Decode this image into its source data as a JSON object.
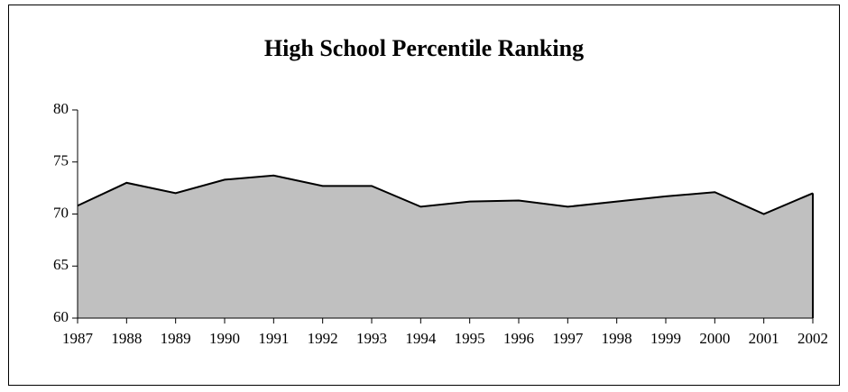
{
  "chart_data": {
    "type": "area",
    "title": "High School Percentile Ranking",
    "categories": [
      "1987",
      "1988",
      "1989",
      "1990",
      "1991",
      "1992",
      "1993",
      "1994",
      "1995",
      "1996",
      "1997",
      "1998",
      "1999",
      "2000",
      "2001",
      "2002"
    ],
    "values": [
      70.8,
      73.0,
      72.0,
      73.3,
      73.7,
      72.7,
      72.7,
      70.7,
      71.2,
      71.3,
      70.7,
      71.2,
      71.7,
      72.1,
      70.0,
      72.0
    ],
    "color": "#c0c0c0",
    "line_color": "#000000",
    "ylim": [
      60,
      80
    ],
    "yticks": [
      60,
      65,
      70,
      75,
      80
    ],
    "grid": false
  }
}
